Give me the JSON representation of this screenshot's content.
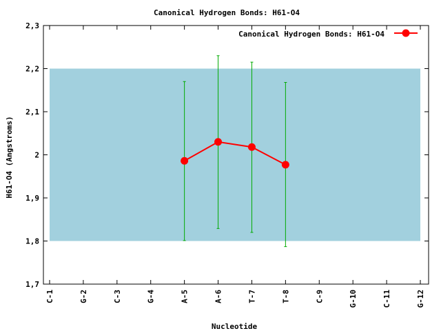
{
  "chart_data": {
    "type": "line",
    "title": "Canonical Hydrogen Bonds: H61-O4",
    "xlabel": "Nucleotide",
    "ylabel": "H61-O4 (Angstroms)",
    "categories": [
      "C-1",
      "G-2",
      "C-3",
      "G-4",
      "A-5",
      "A-6",
      "T-7",
      "T-8",
      "C-9",
      "G-10",
      "C-11",
      "G-12"
    ],
    "ylim": [
      1.7,
      2.3
    ],
    "yticks": [
      "1,7",
      "1,8",
      "1,9",
      "2",
      "2,1",
      "2,2",
      "2,3"
    ],
    "yticks_values": [
      1.7,
      1.8,
      1.9,
      2.0,
      2.1,
      2.2,
      2.3
    ],
    "grid": false,
    "band": {
      "from": 1.8,
      "to": 2.2,
      "color": "#a2d0de"
    },
    "legend": {
      "position": "top-right"
    },
    "series": [
      {
        "name": "Canonical Hydrogen Bonds: H61-O4",
        "color": "#ff0000",
        "points": [
          {
            "category": "A-5",
            "value": 1.986,
            "low": 1.801,
            "high": 2.17
          },
          {
            "category": "A-6",
            "value": 2.03,
            "low": 1.829,
            "high": 2.23
          },
          {
            "category": "T-7",
            "value": 2.018,
            "low": 1.82,
            "high": 2.215
          },
          {
            "category": "T-8",
            "value": 1.977,
            "low": 1.787,
            "high": 2.168
          }
        ],
        "error_color": "#00aa00"
      }
    ]
  }
}
